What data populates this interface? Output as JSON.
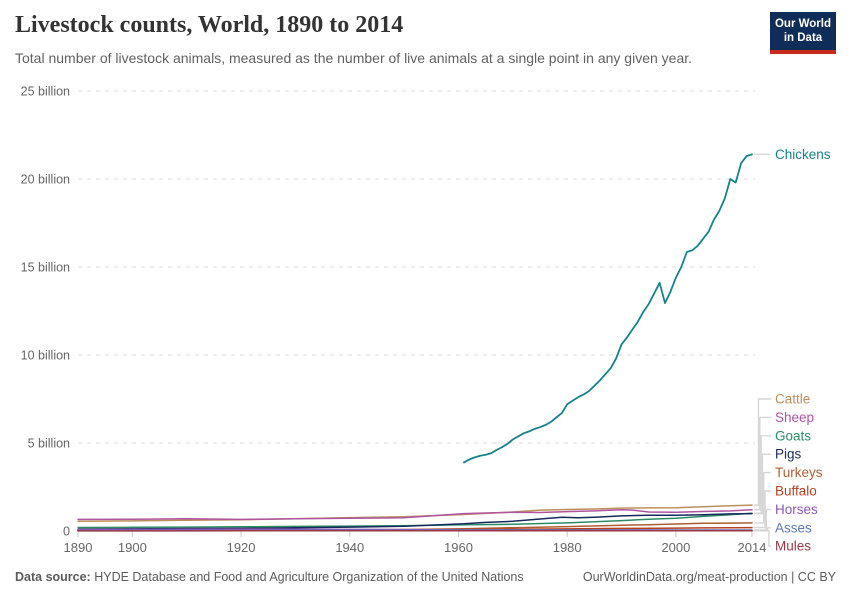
{
  "header": {
    "title": "Livestock counts, World, 1890 to 2014",
    "subtitle": "Total number of livestock animals, measured as the number of live animals at a single point in any given year.",
    "logo": {
      "line1": "Our World",
      "line2": "in Data",
      "bg_color": "#102d59",
      "accent_color": "#c7291d"
    }
  },
  "footer": {
    "source_label": "Data source:",
    "source_text": " HYDE Database and Food and Agriculture Organization of the United Nations",
    "link_text": "OurWorldinData.org/meat-production | CC BY"
  },
  "chart_data": {
    "type": "line",
    "title": "Livestock counts, World, 1890 to 2014",
    "xlabel": "",
    "ylabel": "",
    "unit": "billion animals",
    "x_range": [
      1890,
      2014
    ],
    "y_range": [
      0,
      25
    ],
    "grid": "horizontal dashed",
    "legend_position": "right edge line-end labels",
    "y_ticks": [
      {
        "value": 0,
        "label": "0"
      },
      {
        "value": 5,
        "label": "5 billion"
      },
      {
        "value": 10,
        "label": "10 billion"
      },
      {
        "value": 15,
        "label": "15 billion"
      },
      {
        "value": 20,
        "label": "20 billion"
      },
      {
        "value": 25,
        "label": "25 billion"
      }
    ],
    "x_ticks": [
      {
        "value": 1890,
        "label": "1890"
      },
      {
        "value": 1900,
        "label": "1900"
      },
      {
        "value": 1920,
        "label": "1920"
      },
      {
        "value": 1940,
        "label": "1940"
      },
      {
        "value": 1960,
        "label": "1960"
      },
      {
        "value": 1980,
        "label": "1980"
      },
      {
        "value": 2000,
        "label": "2000"
      },
      {
        "value": 2014,
        "label": "2014"
      }
    ],
    "series": [
      {
        "name": "Chickens",
        "color": "#15828C",
        "points": [
          [
            1961,
            3.9
          ],
          [
            1962,
            4.07
          ],
          [
            1963,
            4.18
          ],
          [
            1964,
            4.27
          ],
          [
            1965,
            4.33
          ],
          [
            1966,
            4.42
          ],
          [
            1967,
            4.6
          ],
          [
            1968,
            4.76
          ],
          [
            1969,
            4.95
          ],
          [
            1970,
            5.2
          ],
          [
            1971,
            5.38
          ],
          [
            1972,
            5.55
          ],
          [
            1973,
            5.66
          ],
          [
            1974,
            5.8
          ],
          [
            1975,
            5.9
          ],
          [
            1976,
            6.02
          ],
          [
            1977,
            6.2
          ],
          [
            1978,
            6.45
          ],
          [
            1979,
            6.7
          ],
          [
            1980,
            7.2
          ],
          [
            1981,
            7.4
          ],
          [
            1982,
            7.6
          ],
          [
            1983,
            7.75
          ],
          [
            1984,
            7.95
          ],
          [
            1985,
            8.25
          ],
          [
            1986,
            8.55
          ],
          [
            1987,
            8.9
          ],
          [
            1988,
            9.25
          ],
          [
            1989,
            9.8
          ],
          [
            1990,
            10.6
          ],
          [
            1991,
            11.0
          ],
          [
            1992,
            11.45
          ],
          [
            1993,
            11.9
          ],
          [
            1994,
            12.45
          ],
          [
            1995,
            12.9
          ],
          [
            1996,
            13.5
          ],
          [
            1997,
            14.1
          ],
          [
            1998,
            12.95
          ],
          [
            1999,
            13.6
          ],
          [
            2000,
            14.4
          ],
          [
            2001,
            15.0
          ],
          [
            2002,
            15.85
          ],
          [
            2003,
            15.95
          ],
          [
            2004,
            16.2
          ],
          [
            2005,
            16.6
          ],
          [
            2006,
            17.0
          ],
          [
            2007,
            17.7
          ],
          [
            2008,
            18.2
          ],
          [
            2009,
            18.9
          ],
          [
            2010,
            20.0
          ],
          [
            2011,
            19.8
          ],
          [
            2012,
            20.9
          ],
          [
            2013,
            21.3
          ],
          [
            2014,
            21.4
          ]
        ]
      },
      {
        "name": "Cattle",
        "color": "#BC8E5A",
        "points": [
          [
            1890,
            0.55
          ],
          [
            1900,
            0.575
          ],
          [
            1910,
            0.61
          ],
          [
            1920,
            0.64
          ],
          [
            1930,
            0.7
          ],
          [
            1940,
            0.76
          ],
          [
            1950,
            0.81
          ],
          [
            1961,
            0.94
          ],
          [
            1965,
            1.0
          ],
          [
            1970,
            1.08
          ],
          [
            1975,
            1.19
          ],
          [
            1980,
            1.22
          ],
          [
            1985,
            1.25
          ],
          [
            1990,
            1.3
          ],
          [
            1995,
            1.31
          ],
          [
            2000,
            1.32
          ],
          [
            2005,
            1.38
          ],
          [
            2010,
            1.43
          ],
          [
            2014,
            1.47
          ]
        ]
      },
      {
        "name": "Sheep",
        "color": "#AF55A0",
        "points": [
          [
            1890,
            0.66
          ],
          [
            1900,
            0.67
          ],
          [
            1910,
            0.695
          ],
          [
            1920,
            0.66
          ],
          [
            1930,
            0.7
          ],
          [
            1940,
            0.72
          ],
          [
            1950,
            0.75
          ],
          [
            1961,
            0.99
          ],
          [
            1965,
            1.02
          ],
          [
            1970,
            1.06
          ],
          [
            1975,
            1.05
          ],
          [
            1980,
            1.1
          ],
          [
            1985,
            1.14
          ],
          [
            1990,
            1.21
          ],
          [
            1992,
            1.19
          ],
          [
            1995,
            1.08
          ],
          [
            2000,
            1.06
          ],
          [
            2005,
            1.11
          ],
          [
            2010,
            1.14
          ],
          [
            2014,
            1.21
          ]
        ]
      },
      {
        "name": "Goats",
        "color": "#2E8A66",
        "points": [
          [
            1890,
            0.2
          ],
          [
            1900,
            0.21
          ],
          [
            1910,
            0.22
          ],
          [
            1920,
            0.24
          ],
          [
            1930,
            0.26
          ],
          [
            1940,
            0.28
          ],
          [
            1950,
            0.3
          ],
          [
            1961,
            0.35
          ],
          [
            1970,
            0.38
          ],
          [
            1980,
            0.46
          ],
          [
            1990,
            0.59
          ],
          [
            1995,
            0.67
          ],
          [
            2000,
            0.72
          ],
          [
            2005,
            0.83
          ],
          [
            2010,
            0.92
          ],
          [
            2014,
            1.01
          ]
        ]
      },
      {
        "name": "Pigs",
        "color": "#16295C",
        "points": [
          [
            1890,
            0.1
          ],
          [
            1900,
            0.12
          ],
          [
            1910,
            0.14
          ],
          [
            1920,
            0.15
          ],
          [
            1930,
            0.19
          ],
          [
            1940,
            0.22
          ],
          [
            1950,
            0.27
          ],
          [
            1961,
            0.41
          ],
          [
            1965,
            0.49
          ],
          [
            1970,
            0.55
          ],
          [
            1975,
            0.68
          ],
          [
            1979,
            0.78
          ],
          [
            1982,
            0.75
          ],
          [
            1985,
            0.78
          ],
          [
            1990,
            0.86
          ],
          [
            1995,
            0.9
          ],
          [
            2000,
            0.9
          ],
          [
            2005,
            0.92
          ],
          [
            2010,
            0.97
          ],
          [
            2014,
            0.99
          ]
        ]
      },
      {
        "name": "Turkeys",
        "color": "#AE5D33",
        "points": [
          [
            1890,
            0.015
          ],
          [
            1900,
            0.02
          ],
          [
            1910,
            0.025
          ],
          [
            1920,
            0.03
          ],
          [
            1930,
            0.04
          ],
          [
            1940,
            0.055
          ],
          [
            1950,
            0.08
          ],
          [
            1961,
            0.13
          ],
          [
            1970,
            0.19
          ],
          [
            1980,
            0.25
          ],
          [
            1990,
            0.33
          ],
          [
            1995,
            0.36
          ],
          [
            2000,
            0.4
          ],
          [
            2005,
            0.44
          ],
          [
            2010,
            0.45
          ],
          [
            2014,
            0.46
          ]
        ]
      },
      {
        "name": "Buffalo",
        "color": "#B54220",
        "points": [
          [
            1890,
            0.05
          ],
          [
            1900,
            0.055
          ],
          [
            1910,
            0.06
          ],
          [
            1920,
            0.065
          ],
          [
            1930,
            0.07
          ],
          [
            1940,
            0.075
          ],
          [
            1950,
            0.08
          ],
          [
            1961,
            0.088
          ],
          [
            1970,
            0.1
          ],
          [
            1980,
            0.12
          ],
          [
            1990,
            0.148
          ],
          [
            2000,
            0.164
          ],
          [
            2005,
            0.177
          ],
          [
            2010,
            0.19
          ],
          [
            2014,
            0.194
          ]
        ]
      },
      {
        "name": "Horses",
        "color": "#8B58B6",
        "points": [
          [
            1890,
            0.07
          ],
          [
            1900,
            0.085
          ],
          [
            1910,
            0.1
          ],
          [
            1920,
            0.11
          ],
          [
            1930,
            0.1
          ],
          [
            1940,
            0.09
          ],
          [
            1950,
            0.08
          ],
          [
            1961,
            0.062
          ],
          [
            1970,
            0.061
          ],
          [
            1980,
            0.059
          ],
          [
            1990,
            0.061
          ],
          [
            2000,
            0.058
          ],
          [
            2010,
            0.059
          ],
          [
            2014,
            0.059
          ]
        ]
      },
      {
        "name": "Asses",
        "color": "#5878B4",
        "points": [
          [
            1890,
            0.018
          ],
          [
            1900,
            0.02
          ],
          [
            1910,
            0.023
          ],
          [
            1920,
            0.025
          ],
          [
            1930,
            0.028
          ],
          [
            1940,
            0.03
          ],
          [
            1950,
            0.033
          ],
          [
            1961,
            0.037
          ],
          [
            1970,
            0.04
          ],
          [
            1980,
            0.039
          ],
          [
            1990,
            0.043
          ],
          [
            2000,
            0.044
          ],
          [
            2010,
            0.043
          ],
          [
            2014,
            0.044
          ]
        ]
      },
      {
        "name": "Mules",
        "color": "#9A3843",
        "points": [
          [
            1890,
            0.005
          ],
          [
            1900,
            0.006
          ],
          [
            1910,
            0.008
          ],
          [
            1920,
            0.009
          ],
          [
            1930,
            0.01
          ],
          [
            1940,
            0.01
          ],
          [
            1950,
            0.011
          ],
          [
            1961,
            0.012
          ],
          [
            1970,
            0.013
          ],
          [
            1980,
            0.014
          ],
          [
            1990,
            0.015
          ],
          [
            2000,
            0.013
          ],
          [
            2010,
            0.011
          ],
          [
            2014,
            0.01
          ]
        ]
      }
    ]
  }
}
